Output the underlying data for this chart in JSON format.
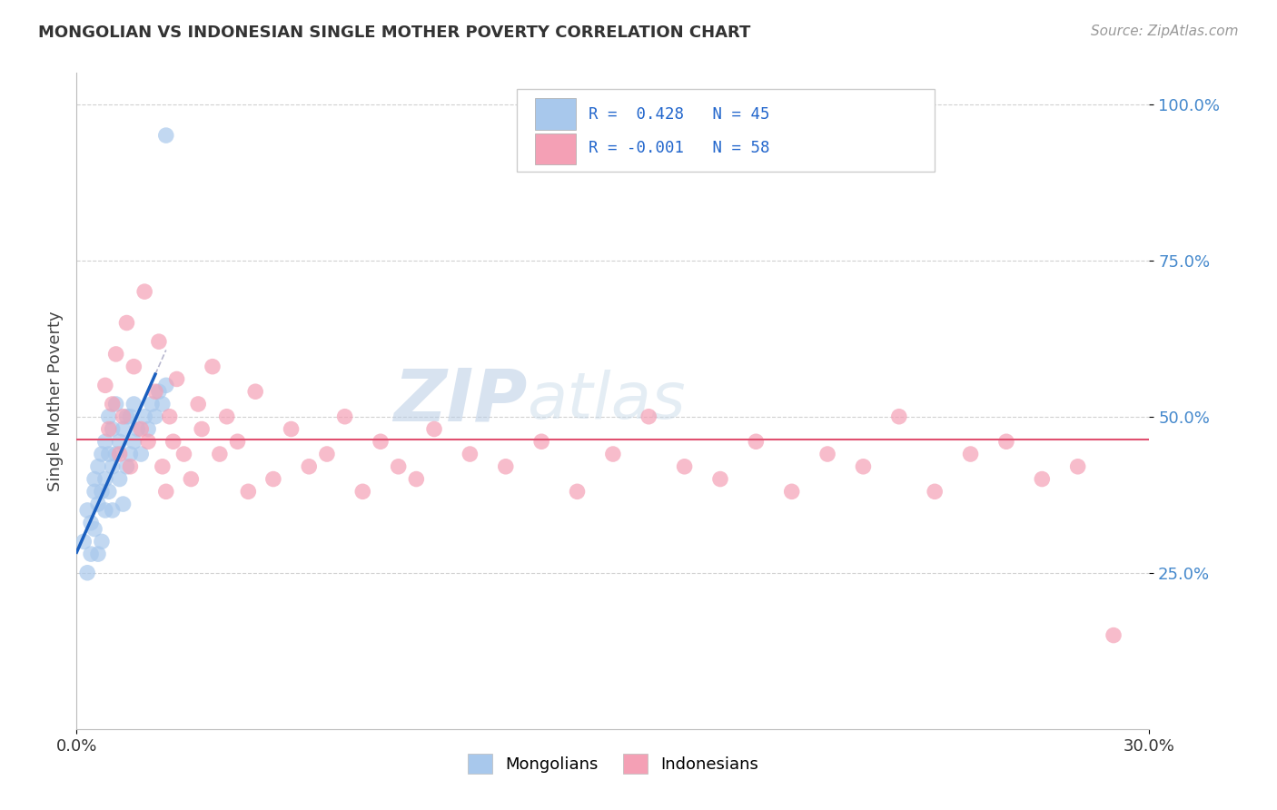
{
  "title": "MONGOLIAN VS INDONESIAN SINGLE MOTHER POVERTY CORRELATION CHART",
  "source": "Source: ZipAtlas.com",
  "ylabel": "Single Mother Poverty",
  "R_mongolian": 0.428,
  "N_mongolian": 45,
  "R_indonesian": -0.001,
  "N_indonesian": 58,
  "xlim": [
    0.0,
    0.3
  ],
  "ylim": [
    0.0,
    1.05
  ],
  "ytick_vals": [
    0.25,
    0.5,
    0.75,
    1.0
  ],
  "ytick_labels": [
    "25.0%",
    "50.0%",
    "75.0%",
    "100.0%"
  ],
  "xtick_vals": [
    0.0,
    0.3
  ],
  "xtick_labels": [
    "0.0%",
    "30.0%"
  ],
  "color_mongolian": "#A8C8EC",
  "color_indonesian": "#F4A0B5",
  "line_color_mongolian": "#1A5FBF",
  "line_color_indonesian": "#E05070",
  "background_color": "#FFFFFF",
  "grid_color": "#CCCCCC",
  "watermark_zip": "ZIP",
  "watermark_atlas": "atlas",
  "legend_mongolians": "Mongolians",
  "legend_indonesians": "Indonesians",
  "mongolian_x": [
    0.002,
    0.003,
    0.003,
    0.004,
    0.004,
    0.005,
    0.005,
    0.005,
    0.006,
    0.006,
    0.006,
    0.007,
    0.007,
    0.007,
    0.008,
    0.008,
    0.008,
    0.009,
    0.009,
    0.009,
    0.01,
    0.01,
    0.01,
    0.011,
    0.011,
    0.012,
    0.012,
    0.013,
    0.013,
    0.014,
    0.014,
    0.015,
    0.015,
    0.016,
    0.016,
    0.017,
    0.018,
    0.019,
    0.02,
    0.021,
    0.022,
    0.023,
    0.024,
    0.025,
    0.025
  ],
  "mongolian_y": [
    0.3,
    0.25,
    0.35,
    0.28,
    0.33,
    0.32,
    0.38,
    0.4,
    0.36,
    0.42,
    0.28,
    0.38,
    0.44,
    0.3,
    0.4,
    0.46,
    0.35,
    0.38,
    0.44,
    0.5,
    0.42,
    0.48,
    0.35,
    0.44,
    0.52,
    0.46,
    0.4,
    0.48,
    0.36,
    0.5,
    0.42,
    0.44,
    0.5,
    0.46,
    0.52,
    0.48,
    0.44,
    0.5,
    0.48,
    0.52,
    0.5,
    0.54,
    0.52,
    0.55,
    0.95
  ],
  "indonesian_x": [
    0.008,
    0.009,
    0.01,
    0.011,
    0.012,
    0.013,
    0.014,
    0.015,
    0.016,
    0.018,
    0.019,
    0.02,
    0.022,
    0.023,
    0.024,
    0.025,
    0.026,
    0.027,
    0.028,
    0.03,
    0.032,
    0.034,
    0.035,
    0.038,
    0.04,
    0.042,
    0.045,
    0.048,
    0.05,
    0.055,
    0.06,
    0.065,
    0.07,
    0.075,
    0.08,
    0.085,
    0.09,
    0.095,
    0.1,
    0.11,
    0.12,
    0.13,
    0.14,
    0.15,
    0.16,
    0.17,
    0.18,
    0.19,
    0.2,
    0.21,
    0.22,
    0.23,
    0.24,
    0.25,
    0.26,
    0.27,
    0.28,
    0.29
  ],
  "indonesian_y": [
    0.55,
    0.48,
    0.52,
    0.6,
    0.44,
    0.5,
    0.65,
    0.42,
    0.58,
    0.48,
    0.7,
    0.46,
    0.54,
    0.62,
    0.42,
    0.38,
    0.5,
    0.46,
    0.56,
    0.44,
    0.4,
    0.52,
    0.48,
    0.58,
    0.44,
    0.5,
    0.46,
    0.38,
    0.54,
    0.4,
    0.48,
    0.42,
    0.44,
    0.5,
    0.38,
    0.46,
    0.42,
    0.4,
    0.48,
    0.44,
    0.42,
    0.46,
    0.38,
    0.44,
    0.5,
    0.42,
    0.4,
    0.46,
    0.38,
    0.44,
    0.42,
    0.5,
    0.38,
    0.44,
    0.46,
    0.4,
    0.42,
    0.15
  ]
}
